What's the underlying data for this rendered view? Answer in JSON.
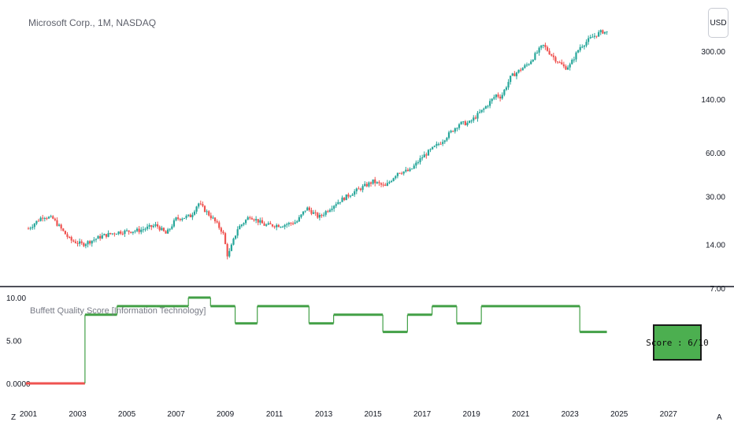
{
  "header": {
    "symbol_title": "Microsoft Corp., 1M, NASDAQ",
    "currency_label": "USD"
  },
  "indicator": {
    "title": "Buffett Quality Score [Information Technology]",
    "score_label": "Score : 6/10"
  },
  "footer": {
    "left_button": "Z",
    "right_button": "A"
  },
  "colors": {
    "up": "#26a69a",
    "down": "#ef5350",
    "score_line": "#43a047",
    "score_zero": "#ef5350",
    "divider": "#131722"
  },
  "chart_data": [
    {
      "type": "candlestick",
      "title": "Microsoft Corp., 1M, NASDAQ",
      "scale": "log",
      "y_ticks": [
        "300.00",
        "140.00",
        "60.00",
        "30.00",
        "14.00",
        "7.00"
      ],
      "x_range": [
        2001.0,
        2024.5
      ],
      "ylim": [
        7,
        420
      ],
      "anchors": [
        {
          "x": 2001.0,
          "y": 18
        },
        {
          "x": 2001.6,
          "y": 22
        },
        {
          "x": 2002.0,
          "y": 21
        },
        {
          "x": 2002.7,
          "y": 15
        },
        {
          "x": 2003.2,
          "y": 14
        },
        {
          "x": 2004.0,
          "y": 16
        },
        {
          "x": 2004.6,
          "y": 17
        },
        {
          "x": 2005.5,
          "y": 17.5
        },
        {
          "x": 2006.2,
          "y": 19
        },
        {
          "x": 2006.6,
          "y": 16.5
        },
        {
          "x": 2007.0,
          "y": 21
        },
        {
          "x": 2007.6,
          "y": 22
        },
        {
          "x": 2007.9,
          "y": 27
        },
        {
          "x": 2008.5,
          "y": 21
        },
        {
          "x": 2008.9,
          "y": 17
        },
        {
          "x": 2009.1,
          "y": 11.5
        },
        {
          "x": 2009.5,
          "y": 18
        },
        {
          "x": 2010.0,
          "y": 22
        },
        {
          "x": 2010.6,
          "y": 19
        },
        {
          "x": 2011.3,
          "y": 19
        },
        {
          "x": 2011.9,
          "y": 20
        },
        {
          "x": 2012.3,
          "y": 25
        },
        {
          "x": 2012.8,
          "y": 21.5
        },
        {
          "x": 2013.5,
          "y": 27
        },
        {
          "x": 2014.2,
          "y": 32
        },
        {
          "x": 2015.0,
          "y": 38
        },
        {
          "x": 2015.5,
          "y": 35
        },
        {
          "x": 2016.0,
          "y": 44
        },
        {
          "x": 2016.5,
          "y": 45
        },
        {
          "x": 2017.0,
          "y": 56
        },
        {
          "x": 2017.8,
          "y": 72
        },
        {
          "x": 2018.5,
          "y": 95
        },
        {
          "x": 2018.9,
          "y": 96
        },
        {
          "x": 2019.5,
          "y": 120
        },
        {
          "x": 2020.0,
          "y": 150
        },
        {
          "x": 2020.2,
          "y": 145
        },
        {
          "x": 2020.6,
          "y": 200
        },
        {
          "x": 2021.3,
          "y": 245
        },
        {
          "x": 2021.9,
          "y": 330
        },
        {
          "x": 2022.4,
          "y": 265
        },
        {
          "x": 2022.8,
          "y": 230
        },
        {
          "x": 2023.0,
          "y": 240
        },
        {
          "x": 2023.4,
          "y": 320
        },
        {
          "x": 2023.9,
          "y": 375
        },
        {
          "x": 2024.3,
          "y": 410
        },
        {
          "x": 2024.5,
          "y": 405
        }
      ]
    },
    {
      "type": "line",
      "title": "Buffett Quality Score [Information Technology]",
      "y_ticks": [
        "10.00",
        "5.00",
        "0.0000"
      ],
      "ylim": [
        0,
        10
      ],
      "x_ticks": [
        "2003",
        "2005",
        "2007",
        "2009",
        "2011",
        "2013",
        "2015",
        "2017",
        "2019",
        "2021",
        "2023",
        "2025",
        "2027"
      ],
      "x_tick_values": [
        2003,
        2005,
        2007,
        2009,
        2011,
        2013,
        2015,
        2017,
        2019,
        2021,
        2023,
        2025,
        2027
      ],
      "left_edge_label": "2001",
      "steps": [
        {
          "x": 2000.9,
          "y": 0
        },
        {
          "x": 2003.3,
          "y": 8
        },
        {
          "x": 2004.6,
          "y": 9
        },
        {
          "x": 2006.2,
          "y": 9
        },
        {
          "x": 2007.4,
          "y": 9
        },
        {
          "x": 2007.5,
          "y": 10
        },
        {
          "x": 2008.4,
          "y": 9
        },
        {
          "x": 2009.4,
          "y": 7
        },
        {
          "x": 2010.3,
          "y": 9
        },
        {
          "x": 2012.4,
          "y": 7
        },
        {
          "x": 2013.4,
          "y": 8
        },
        {
          "x": 2015.4,
          "y": 6
        },
        {
          "x": 2016.4,
          "y": 8
        },
        {
          "x": 2017.4,
          "y": 9
        },
        {
          "x": 2018.4,
          "y": 7
        },
        {
          "x": 2019.4,
          "y": 9
        },
        {
          "x": 2023.4,
          "y": 6
        }
      ],
      "end_x": 2024.5,
      "current_score": 6
    }
  ]
}
